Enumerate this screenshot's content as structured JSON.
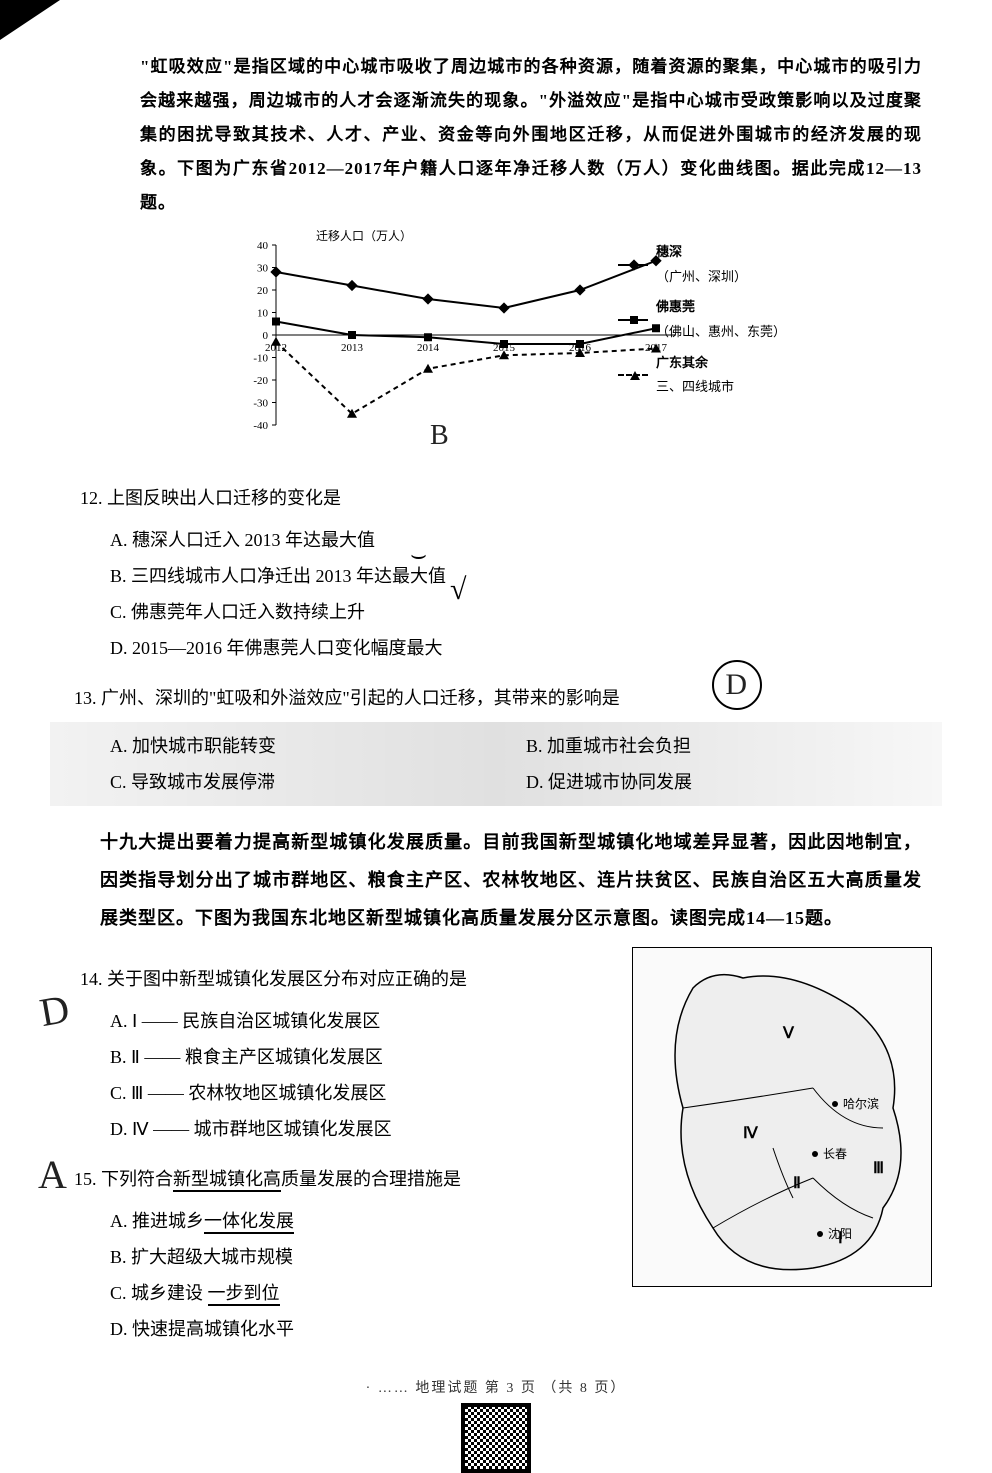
{
  "intro": "\"虹吸效应\"是指区域的中心城市吸收了周边城市的各种资源，随着资源的聚集，中心城市的吸引力会越来越强，周边城市的人才会逐渐流失的现象。\"外溢效应\"是指中心城市受政策影响以及过度聚集的困扰导致其技术、人才、产业、资金等向外围地区迁移，从而促进外围城市的经济发展的现象。下图为广东省2012—2017年户籍人口逐年净迁移人数（万人）变化曲线图。据此完成12—13题。",
  "chart": {
    "type": "line",
    "y_title": "迁移人口（万人）",
    "ylim": [
      -40,
      40
    ],
    "yticks": [
      -40,
      -30,
      -20,
      -10,
      0,
      10,
      20,
      30,
      40
    ],
    "xticks": [
      "2012",
      "2013",
      "2014",
      "2015",
      "2016",
      "2017"
    ],
    "series": [
      {
        "name": "穗深",
        "sub": "（广州、深圳）",
        "values": [
          28,
          22,
          16,
          12,
          20,
          33
        ],
        "marker": "diamond"
      },
      {
        "name": "佛惠莞",
        "sub": "（佛山、惠州、东莞）",
        "values": [
          6,
          0,
          -1,
          -4,
          -4,
          3
        ],
        "marker": "square"
      },
      {
        "name": "广东其余",
        "sub": "三、四线城市",
        "values": [
          -3,
          -35,
          -15,
          -9,
          -8,
          -6
        ],
        "marker": "triangle",
        "dashed": true
      }
    ],
    "colors": {
      "line": "#000000",
      "grid": "#cccccc",
      "bg": "#ffffff"
    },
    "line_width": 2
  },
  "q12": {
    "stem": "12. 上图反映出人口迁移的变化是",
    "A": "A. 穗深人口迁入 2013 年达最大值",
    "B": "B. 三四线城市人口净迁出 2013 年达最大值",
    "C": "C. 佛惠莞年人口迁入数持续上升",
    "D": "D. 2015—2016 年佛惠莞人口变化幅度最大"
  },
  "q13": {
    "stem": "13. 广州、深圳的\"虹吸和外溢效应\"引起的人口迁移，其带来的影响是",
    "A": "A. 加快城市职能转变",
    "B": "B. 加重城市社会负担",
    "C": "C. 导致城市发展停滞",
    "D": "D. 促进城市协同发展"
  },
  "para2": "十九大提出要着力提高新型城镇化发展质量。目前我国新型城镇化地域差异显著，因此因地制宜，因类指导划分出了城市群地区、粮食主产区、农林牧地区、连片扶贫区、民族自治区五大高质量发展类型区。下图为我国东北地区新型城镇化高质量发展分区示意图。读图完成14—15题。",
  "q14": {
    "stem": "14. 关于图中新型城镇化发展区分布对应正确的是",
    "A": "A. Ⅰ —— 民族自治区城镇化发展区",
    "B": "B. Ⅱ —— 粮食主产区城镇化发展区",
    "C": "C. Ⅲ —— 农林牧地区城镇化发展区",
    "D": "D. Ⅳ —— 城市群地区城镇化发展区"
  },
  "q15": {
    "stem": "15. 下列符合新型城镇化高质量发展的合理措施是",
    "A": "A. 推进城乡一体化发展",
    "B": "B. 扩大超级大城市规模",
    "C": "C. 城乡建设一步到位",
    "D": "D. 快速提高城镇化水平"
  },
  "map": {
    "labels": [
      "Ⅰ",
      "Ⅱ",
      "Ⅲ",
      "Ⅳ",
      "Ⅴ"
    ],
    "cities": [
      "哈尔滨",
      "长春",
      "沈阳"
    ],
    "positions": {
      "Ⅴ": [
        150,
        90
      ],
      "Ⅳ": [
        110,
        190
      ],
      "Ⅱ": [
        160,
        240
      ],
      "Ⅲ": [
        240,
        225
      ],
      "Ⅰ": [
        205,
        295
      ],
      "哈尔滨": [
        210,
        160
      ],
      "长春": [
        190,
        210
      ],
      "沈阳": [
        195,
        290
      ]
    }
  },
  "footer": "· …… 地理试题 第 3 页 （共 8 页）"
}
